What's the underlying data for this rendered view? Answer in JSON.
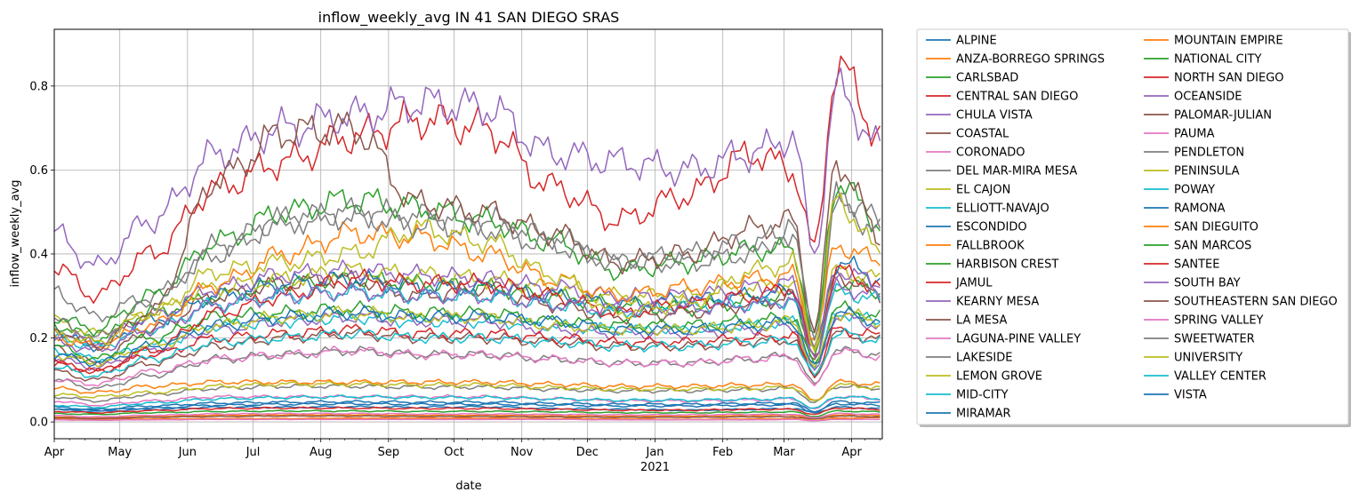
{
  "chart_data": {
    "type": "line",
    "title": "inflow_weekly_avg IN 41 SAN DIEGO SRAS",
    "xlabel": "date",
    "ylabel": "inflow_weekly_avg",
    "x_start": "2020-04-01",
    "x_end": "2021-04-15",
    "ylim": [
      -0.04,
      0.935
    ],
    "y_ticks": [
      0.0,
      0.2,
      0.4,
      0.6,
      0.8
    ],
    "y_tick_labels": [
      "0.0",
      "0.2",
      "0.4",
      "0.6",
      "0.8"
    ],
    "x_ticks": [
      {
        "date": "2020-04-01",
        "label": "Apr"
      },
      {
        "date": "2020-05-01",
        "label": "May"
      },
      {
        "date": "2020-06-01",
        "label": "Jun"
      },
      {
        "date": "2020-07-01",
        "label": "Jul"
      },
      {
        "date": "2020-08-01",
        "label": "Aug"
      },
      {
        "date": "2020-09-01",
        "label": "Sep"
      },
      {
        "date": "2020-10-01",
        "label": "Oct"
      },
      {
        "date": "2020-11-01",
        "label": "Nov"
      },
      {
        "date": "2020-12-01",
        "label": "Dec"
      },
      {
        "date": "2021-01-01",
        "label": "Jan"
      },
      {
        "date": "2021-02-01",
        "label": "Feb"
      },
      {
        "date": "2021-03-01",
        "label": "Mar"
      },
      {
        "date": "2021-04-01",
        "label": "Apr"
      }
    ],
    "year_label": "2021",
    "grid": true,
    "legend_position": "outside-right",
    "legend_columns": 2,
    "colors": [
      "#1f77b4",
      "#ff7f0e",
      "#2ca02c",
      "#d62728",
      "#9467bd",
      "#8c564b",
      "#e377c2",
      "#7f7f7f",
      "#bcbd22",
      "#17becf"
    ],
    "anchor_dates": [
      "2020-04-01",
      "2020-04-20",
      "2020-05-15",
      "2020-06-15",
      "2020-07-15",
      "2020-08-15",
      "2020-09-15",
      "2020-10-15",
      "2020-11-15",
      "2020-12-15",
      "2021-01-15",
      "2021-02-15",
      "2021-03-05",
      "2021-03-15",
      "2021-03-25",
      "2021-04-15"
    ],
    "series": [
      {
        "name": "ALPINE",
        "values": [
          0.03,
          0.025,
          0.03,
          0.035,
          0.035,
          0.036,
          0.035,
          0.036,
          0.032,
          0.03,
          0.028,
          0.03,
          0.032,
          0.022,
          0.035,
          0.032
        ]
      },
      {
        "name": "ANZA-BORREGO SPRINGS",
        "values": [
          0.008,
          0.006,
          0.007,
          0.008,
          0.008,
          0.009,
          0.009,
          0.009,
          0.008,
          0.007,
          0.006,
          0.007,
          0.008,
          0.004,
          0.009,
          0.01
        ]
      },
      {
        "name": "CARLSBAD",
        "values": [
          0.23,
          0.2,
          0.26,
          0.3,
          0.33,
          0.34,
          0.33,
          0.32,
          0.3,
          0.28,
          0.27,
          0.29,
          0.3,
          0.16,
          0.33,
          0.31
        ]
      },
      {
        "name": "CENTRAL SAN DIEGO",
        "values": [
          0.37,
          0.3,
          0.4,
          0.56,
          0.62,
          0.68,
          0.72,
          0.7,
          0.56,
          0.48,
          0.54,
          0.64,
          0.6,
          0.41,
          0.85,
          0.68
        ]
      },
      {
        "name": "CHULA VISTA",
        "values": [
          0.45,
          0.37,
          0.48,
          0.64,
          0.7,
          0.73,
          0.76,
          0.75,
          0.64,
          0.62,
          0.6,
          0.64,
          0.68,
          0.4,
          0.79,
          0.65
        ]
      },
      {
        "name": "COASTAL",
        "values": [
          0.18,
          0.14,
          0.22,
          0.3,
          0.33,
          0.34,
          0.3,
          0.32,
          0.28,
          0.25,
          0.26,
          0.28,
          0.3,
          0.15,
          0.35,
          0.3
        ]
      },
      {
        "name": "CORONADO",
        "values": [
          0.05,
          0.04,
          0.05,
          0.06,
          0.06,
          0.06,
          0.06,
          0.06,
          0.055,
          0.05,
          0.05,
          0.052,
          0.055,
          0.03,
          0.06,
          0.055
        ]
      },
      {
        "name": "DEL MAR-MIRA MESA",
        "values": [
          0.1,
          0.08,
          0.11,
          0.15,
          0.16,
          0.17,
          0.16,
          0.16,
          0.15,
          0.14,
          0.14,
          0.15,
          0.16,
          0.09,
          0.17,
          0.16
        ]
      },
      {
        "name": "EL CAJON",
        "values": [
          0.24,
          0.21,
          0.26,
          0.32,
          0.34,
          0.36,
          0.35,
          0.34,
          0.32,
          0.3,
          0.3,
          0.32,
          0.33,
          0.18,
          0.36,
          0.34
        ]
      },
      {
        "name": "ELLIOTT-NAVAJO",
        "values": [
          0.17,
          0.15,
          0.18,
          0.23,
          0.24,
          0.25,
          0.24,
          0.24,
          0.23,
          0.22,
          0.22,
          0.23,
          0.24,
          0.13,
          0.26,
          0.24
        ]
      },
      {
        "name": "ESCONDIDO",
        "values": [
          0.21,
          0.18,
          0.24,
          0.3,
          0.33,
          0.34,
          0.32,
          0.32,
          0.3,
          0.28,
          0.29,
          0.3,
          0.31,
          0.17,
          0.38,
          0.34
        ]
      },
      {
        "name": "FALLBROOK",
        "values": [
          0.08,
          0.07,
          0.085,
          0.095,
          0.095,
          0.095,
          0.095,
          0.095,
          0.09,
          0.085,
          0.085,
          0.088,
          0.09,
          0.05,
          0.095,
          0.09
        ]
      },
      {
        "name": "HARBISON CREST",
        "values": [
          0.02,
          0.018,
          0.022,
          0.025,
          0.026,
          0.026,
          0.025,
          0.025,
          0.024,
          0.022,
          0.022,
          0.023,
          0.024,
          0.013,
          0.026,
          0.024
        ]
      },
      {
        "name": "JAMUL",
        "values": [
          0.025,
          0.022,
          0.027,
          0.032,
          0.033,
          0.033,
          0.032,
          0.032,
          0.03,
          0.028,
          0.028,
          0.03,
          0.03,
          0.018,
          0.033,
          0.03
        ]
      },
      {
        "name": "KEARNY MESA",
        "values": [
          0.15,
          0.13,
          0.17,
          0.22,
          0.24,
          0.25,
          0.24,
          0.24,
          0.22,
          0.21,
          0.21,
          0.22,
          0.23,
          0.12,
          0.25,
          0.23
        ]
      },
      {
        "name": "LA MESA",
        "values": [
          0.12,
          0.1,
          0.14,
          0.18,
          0.2,
          0.21,
          0.2,
          0.2,
          0.19,
          0.18,
          0.18,
          0.19,
          0.195,
          0.11,
          0.21,
          0.195
        ]
      },
      {
        "name": "LAGUNA-PINE VALLEY",
        "values": [
          0.005,
          0.004,
          0.005,
          0.006,
          0.006,
          0.006,
          0.006,
          0.006,
          0.006,
          0.005,
          0.005,
          0.005,
          0.006,
          0.003,
          0.006,
          0.006
        ]
      },
      {
        "name": "LAKESIDE",
        "values": [
          0.06,
          0.05,
          0.065,
          0.08,
          0.085,
          0.085,
          0.083,
          0.083,
          0.078,
          0.074,
          0.074,
          0.077,
          0.08,
          0.045,
          0.085,
          0.08
        ]
      },
      {
        "name": "LEMON GROVE",
        "values": [
          0.065,
          0.06,
          0.07,
          0.085,
          0.09,
          0.09,
          0.088,
          0.088,
          0.082,
          0.078,
          0.078,
          0.08,
          0.083,
          0.048,
          0.088,
          0.082
        ]
      },
      {
        "name": "MID-CITY",
        "values": [
          0.2,
          0.18,
          0.22,
          0.28,
          0.3,
          0.31,
          0.3,
          0.3,
          0.28,
          0.26,
          0.28,
          0.28,
          0.29,
          0.16,
          0.31,
          0.29
        ]
      },
      {
        "name": "MIRAMAR",
        "values": [
          0.03,
          0.028,
          0.033,
          0.04,
          0.042,
          0.043,
          0.042,
          0.042,
          0.04,
          0.038,
          0.038,
          0.04,
          0.041,
          0.023,
          0.043,
          0.04
        ]
      },
      {
        "name": "MOUNTAIN EMPIRE",
        "values": [
          0.012,
          0.01,
          0.013,
          0.016,
          0.017,
          0.017,
          0.016,
          0.016,
          0.015,
          0.014,
          0.014,
          0.015,
          0.016,
          0.009,
          0.017,
          0.016
        ]
      },
      {
        "name": "NATIONAL CITY",
        "values": [
          0.18,
          0.15,
          0.2,
          0.25,
          0.26,
          0.27,
          0.26,
          0.26,
          0.24,
          0.23,
          0.23,
          0.24,
          0.25,
          0.14,
          0.27,
          0.25
        ]
      },
      {
        "name": "NORTH SAN DIEGO",
        "values": [
          0.14,
          0.12,
          0.16,
          0.2,
          0.21,
          0.22,
          0.21,
          0.21,
          0.2,
          0.19,
          0.19,
          0.2,
          0.205,
          0.115,
          0.22,
          0.205
        ]
      },
      {
        "name": "OCEANSIDE",
        "values": [
          0.22,
          0.19,
          0.25,
          0.32,
          0.35,
          0.36,
          0.35,
          0.34,
          0.32,
          0.3,
          0.3,
          0.32,
          0.33,
          0.18,
          0.36,
          0.33
        ]
      },
      {
        "name": "PALOMAR-JULIAN",
        "values": [
          0.01,
          0.008,
          0.011,
          0.013,
          0.014,
          0.014,
          0.013,
          0.013,
          0.012,
          0.011,
          0.011,
          0.012,
          0.012,
          0.007,
          0.014,
          0.012
        ]
      },
      {
        "name": "PAUMA",
        "values": [
          0.015,
          0.012,
          0.016,
          0.019,
          0.02,
          0.02,
          0.019,
          0.019,
          0.018,
          0.017,
          0.017,
          0.018,
          0.018,
          0.01,
          0.02,
          0.018
        ]
      },
      {
        "name": "PENDLETON",
        "values": [
          0.31,
          0.25,
          0.3,
          0.4,
          0.48,
          0.5,
          0.49,
          0.48,
          0.44,
          0.38,
          0.38,
          0.4,
          0.46,
          0.18,
          0.54,
          0.48
        ]
      },
      {
        "name": "PENINSULA",
        "values": [
          0.16,
          0.14,
          0.18,
          0.23,
          0.25,
          0.26,
          0.25,
          0.25,
          0.23,
          0.22,
          0.22,
          0.23,
          0.24,
          0.13,
          0.26,
          0.24
        ]
      },
      {
        "name": "POWAY",
        "values": [
          0.13,
          0.11,
          0.15,
          0.19,
          0.2,
          0.21,
          0.2,
          0.2,
          0.19,
          0.18,
          0.18,
          0.19,
          0.195,
          0.11,
          0.21,
          0.195
        ]
      },
      {
        "name": "RAMONA",
        "values": [
          0.035,
          0.03,
          0.038,
          0.045,
          0.047,
          0.048,
          0.047,
          0.047,
          0.044,
          0.042,
          0.042,
          0.044,
          0.045,
          0.025,
          0.048,
          0.045
        ]
      },
      {
        "name": "SAN DIEGUITO",
        "values": [
          0.2,
          0.18,
          0.23,
          0.33,
          0.4,
          0.45,
          0.44,
          0.4,
          0.34,
          0.3,
          0.32,
          0.34,
          0.35,
          0.2,
          0.42,
          0.38
        ]
      },
      {
        "name": "SAN MARCOS",
        "values": [
          0.25,
          0.22,
          0.3,
          0.43,
          0.5,
          0.53,
          0.51,
          0.48,
          0.43,
          0.36,
          0.38,
          0.41,
          0.41,
          0.2,
          0.57,
          0.47
        ]
      },
      {
        "name": "SANTEE",
        "values": [
          0.14,
          0.12,
          0.17,
          0.26,
          0.3,
          0.34,
          0.33,
          0.33,
          0.3,
          0.26,
          0.28,
          0.3,
          0.32,
          0.15,
          0.36,
          0.32
        ]
      },
      {
        "name": "SOUTH BAY",
        "values": [
          0.19,
          0.17,
          0.22,
          0.28,
          0.3,
          0.31,
          0.3,
          0.3,
          0.28,
          0.27,
          0.27,
          0.28,
          0.29,
          0.16,
          0.32,
          0.3
        ]
      },
      {
        "name": "SOUTHEASTERN SAN DIEGO",
        "values": [
          0.22,
          0.18,
          0.26,
          0.58,
          0.69,
          0.7,
          0.52,
          0.5,
          0.45,
          0.38,
          0.4,
          0.46,
          0.48,
          0.22,
          0.62,
          0.44
        ]
      },
      {
        "name": "SPRING VALLEY",
        "values": [
          0.1,
          0.09,
          0.12,
          0.15,
          0.16,
          0.17,
          0.16,
          0.16,
          0.15,
          0.14,
          0.14,
          0.15,
          0.155,
          0.085,
          0.17,
          0.155
        ]
      },
      {
        "name": "SWEETWATER",
        "values": [
          0.24,
          0.2,
          0.28,
          0.42,
          0.48,
          0.49,
          0.47,
          0.46,
          0.42,
          0.38,
          0.4,
          0.43,
          0.45,
          0.2,
          0.52,
          0.45
        ]
      },
      {
        "name": "UNIVERSITY",
        "values": [
          0.21,
          0.19,
          0.26,
          0.36,
          0.38,
          0.4,
          0.46,
          0.43,
          0.35,
          0.26,
          0.28,
          0.36,
          0.38,
          0.18,
          0.53,
          0.4
        ]
      },
      {
        "name": "VALLEY CENTER",
        "values": [
          0.04,
          0.035,
          0.045,
          0.055,
          0.058,
          0.06,
          0.058,
          0.058,
          0.055,
          0.052,
          0.052,
          0.054,
          0.056,
          0.032,
          0.06,
          0.056
        ]
      },
      {
        "name": "VISTA",
        "values": [
          0.16,
          0.14,
          0.18,
          0.23,
          0.25,
          0.26,
          0.25,
          0.25,
          0.24,
          0.22,
          0.22,
          0.23,
          0.24,
          0.13,
          0.26,
          0.24
        ]
      }
    ]
  }
}
